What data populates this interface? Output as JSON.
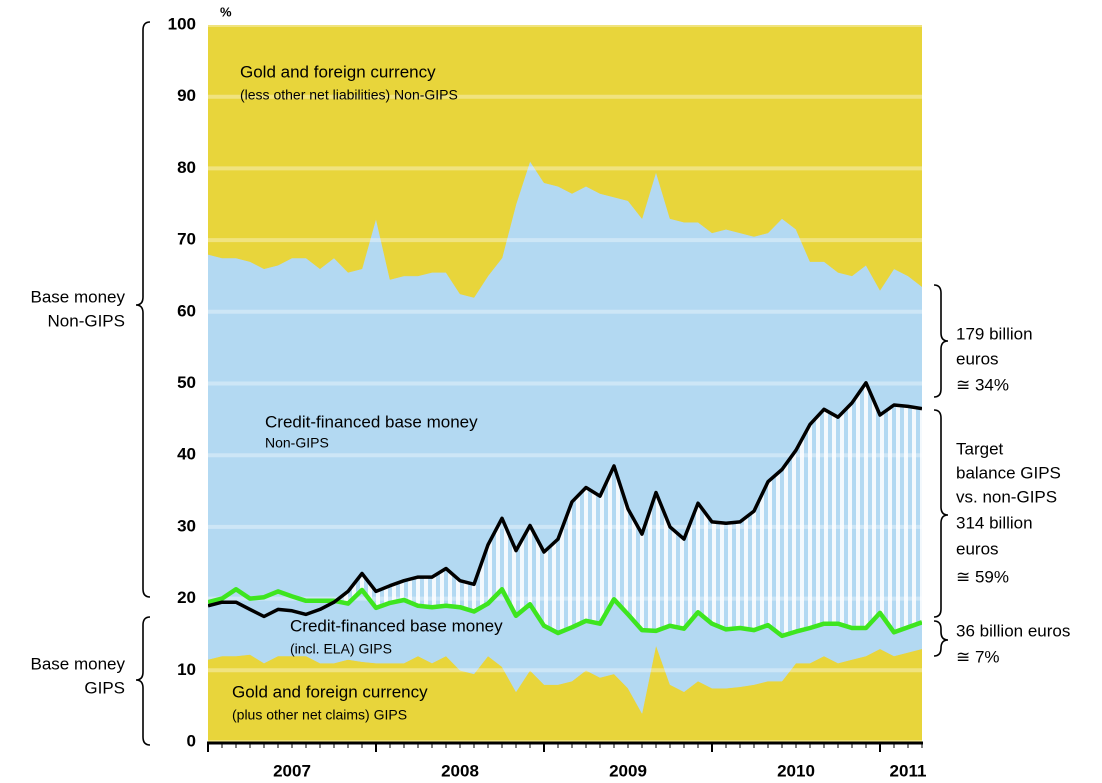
{
  "chart_data": {
    "type": "area",
    "y_unit": "%",
    "ylim": [
      0,
      100
    ],
    "yticks": [
      0,
      10,
      20,
      30,
      40,
      50,
      60,
      70,
      80,
      90,
      100
    ],
    "grid": true,
    "categories": [
      null,
      null,
      null,
      null,
      null,
      null,
      "2007",
      null,
      null,
      null,
      null,
      null,
      null,
      null,
      null,
      null,
      null,
      null,
      "2008",
      null,
      null,
      null,
      null,
      null,
      null,
      null,
      null,
      null,
      null,
      null,
      "2009",
      null,
      null,
      null,
      null,
      null,
      null,
      null,
      null,
      null,
      null,
      null,
      "2010",
      null,
      null,
      null,
      null,
      null,
      null,
      null,
      "2011",
      null
    ],
    "series": [
      {
        "name": "Gold and foreign currency",
        "name_line2": "(plus other net claims) GIPS",
        "color": "#e8d53b",
        "values": [
          11.5,
          12,
          12,
          12.2,
          11,
          12,
          12,
          12,
          11,
          11,
          11.5,
          11.2,
          11,
          11,
          11,
          12,
          11,
          12,
          10,
          9.5,
          12,
          10.5,
          7,
          10,
          8,
          8,
          8.5,
          10,
          9,
          9.5,
          7.5,
          4,
          13.5,
          8,
          7,
          8.5,
          7.5,
          7.5,
          7.7,
          8,
          8.5,
          8.5,
          11,
          11,
          12,
          11,
          11.5,
          12,
          13,
          12,
          12.5,
          13
        ]
      },
      {
        "name": "Credit-financed base money",
        "name_line2": "(incl. ELA) GIPS",
        "color": "#b3d9f2",
        "line_color": "#3ee51f",
        "values": [
          8,
          8,
          9.3,
          7.8,
          9.2,
          9,
          8.3,
          7.7,
          8.7,
          8.7,
          7.8,
          10,
          7.7,
          8.4,
          8.8,
          7,
          7.8,
          7,
          8.8,
          8.7,
          7.3,
          10.8,
          10.6,
          9.2,
          8.2,
          7.2,
          7.5,
          6.9,
          7.5,
          10.4,
          10.3,
          11.6,
          2,
          8.2,
          8.8,
          9.6,
          9,
          8.2,
          8.2,
          7.6,
          7.8,
          6.3,
          4.4,
          4.9,
          4.5,
          5.5,
          4.4,
          3.9,
          5,
          3.3,
          3.5,
          3.7
        ]
      },
      {
        "name": "Credit-financed base money",
        "name_line2": "Non-GIPS",
        "color": "#b3d9f2",
        "values": [
          48.5,
          47.5,
          46.2,
          47,
          45.8,
          45.5,
          47.2,
          47.8,
          46.3,
          47.8,
          46.2,
          44.8,
          54.3,
          45.1,
          45.2,
          46,
          46.7,
          46.5,
          43.7,
          43.8,
          45.7,
          46.2,
          57.4,
          61.8,
          61.8,
          62.3,
          60.5,
          60.6,
          60,
          56.1,
          57.7,
          57.4,
          64,
          56.8,
          56.7,
          54.4,
          54.5,
          55.8,
          55.1,
          54.9,
          54.7,
          58.2,
          56.1,
          51.1,
          50.5,
          49,
          49.1,
          50.6,
          45,
          50.7,
          49,
          46.8
        ]
      },
      {
        "name": "Gold and foreign currency",
        "name_line2": "(less other net liabilities) Non-GIPS",
        "color": "#e8d53b",
        "values": [
          32,
          32.5,
          32.5,
          33,
          34,
          33.5,
          32.5,
          32.5,
          34,
          32.5,
          34.5,
          34,
          27,
          35.5,
          35,
          35,
          34.5,
          34.5,
          37.5,
          38,
          35,
          32.5,
          25,
          19,
          22,
          22.5,
          23.5,
          22.5,
          23.5,
          24,
          24.5,
          27,
          20.5,
          27,
          27.5,
          27.5,
          29,
          28.5,
          29,
          29.5,
          29,
          27,
          28.5,
          33,
          33,
          34.5,
          35,
          33.5,
          37,
          34,
          35,
          36.5
        ]
      }
    ],
    "line": {
      "color": "#000000",
      "values": [
        19,
        19.5,
        19.5,
        18.5,
        17.5,
        18.5,
        18.3,
        17.8,
        18.5,
        19.5,
        21,
        23.5,
        21,
        21.8,
        22.5,
        23,
        23,
        24.2,
        22.5,
        22,
        27.5,
        31.2,
        26.7,
        30.2,
        26.5,
        28.3,
        33.5,
        35.5,
        34.3,
        38.5,
        32.5,
        29,
        34.8,
        30,
        28.3,
        33.3,
        30.7,
        30.5,
        30.7,
        32.2,
        36.3,
        38,
        40.7,
        44.3,
        46.4,
        45.3,
        47.3,
        50.1,
        45.6,
        47,
        46.8,
        46.5
      ]
    },
    "brackets_left": [
      {
        "lines": [
          "Base money",
          "Non-GIPS"
        ]
      },
      {
        "lines": [
          "Base money",
          "GIPS"
        ]
      }
    ],
    "brackets_right": [
      {
        "lines": [
          "179 billion",
          "euros",
          "≅ 34%"
        ]
      },
      {
        "lines": [
          "Target",
          "balance GIPS",
          "vs. non-GIPS",
          "314 billion",
          "euros",
          "≅ 59%"
        ]
      },
      {
        "lines": [
          "36 billion euros",
          "≅ 7%"
        ]
      }
    ]
  }
}
